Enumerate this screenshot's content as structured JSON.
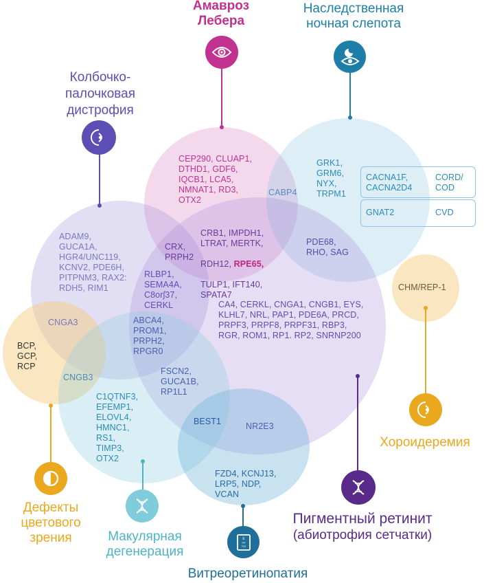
{
  "diseases": {
    "amaurosis": {
      "title": "Амавроз\nЛебера",
      "color": "#c1318f"
    },
    "night_blindness": {
      "title": "Наследственная\nночная слепота",
      "color": "#1d7fa8"
    },
    "cone_rod": {
      "title": "Колбочко-\nпалочковая\nдистрофия",
      "color": "#5b4fb5"
    },
    "choroideremia": {
      "title": "Хороидеремия",
      "color": "#e9a81e"
    },
    "color_vision": {
      "title": "Дефекты\nцветового\nзрения",
      "color": "#e9a81e"
    },
    "macular": {
      "title": "Макулярная\nдегенерация",
      "color": "#4db4c6"
    },
    "vitreoretinopathy": {
      "title": "Витреоретинопатия",
      "color": "#1f6f9a"
    },
    "retinitis": {
      "title": "Пигментный ретинит",
      "subtitle": "(абиотрофия сетчатки)",
      "color": "#5a2a8a"
    }
  },
  "genes": {
    "lca_only": "CEP290, CLUAP1,\nDTHD1, GDF6,\nIQCB1, LCA5,\nNMNAT1, RD3,\nOTX2",
    "cabp4": "CABP4",
    "csnb_only": "GRK1,\nGRM6,\nNYX,\nTRPM1",
    "box1_left": "CACNA1F,\nCACNA2D4",
    "box1_right": "CORD/\nCOD",
    "box2_left": "GNAT2",
    "box2_right": "CVD",
    "lca_rp_a": "CRB1, IMPDH1,\nLTRAT, MERTK,",
    "lca_rp_b_prefix": "RDH12, ",
    "lca_rp_b_highlight": "RPE65,",
    "lca_rp_c": "TULP1, IFT140,\nSPATA7",
    "crx": "CRX,\nPRPH2",
    "pde68": "PDE68,\nRHO, SAG",
    "cord_only": "ADAM9,\nGUCA1A,\nHGR4/UNC119,\nKCNV2, PDE6H,\nPITPNM3, RAX2:\nRDH5, RIM1",
    "rlbp1": "RLBP1,\nSEMA4A,\nC8orʃ37,\nCERKL",
    "rp_only": "CA4, CERKL, CNGA1, CNGB1, EYS,\nKLHL7, NRL, PAP1, PDE6A, PRCD,\nPRPF3, PRPF8, PRPF31, RBP3,\nRGR, ROM1, RP1. RP2, SNRNP200",
    "chm": "CHM/REP-1",
    "cnga3": "CNGA3",
    "bcp": "BCP,\nGCP,\nRCP",
    "abca4": "ABCA4,\nPROM1,\nPRPH2,\nRPGR0",
    "cngb3": "CNGB3",
    "fscn2": "FSCN2,\nGUCA1B,\nRP1L1",
    "macular_only": "C1QTNF3,\nEFEMP1,\nELOVL4,\nHMNC1,\nRS1,\nTIMP3,\nOTX2",
    "best1": "BEST1",
    "nr2e3": "NR2E3",
    "vitreo_only": "FZD4, KCNJ13,\nLRP5, NDP,\nVCAN"
  },
  "icons": {
    "amaurosis": "eye-icon",
    "night_blindness": "night-eye-icon",
    "cone_rod": "eye-profile-icon",
    "choroideremia": "eye-profile-icon",
    "color_vision": "half-circle-icon",
    "macular": "dna-icon",
    "vitreoretinopathy": "eye-chart-icon",
    "retinitis": "dna-icon"
  }
}
